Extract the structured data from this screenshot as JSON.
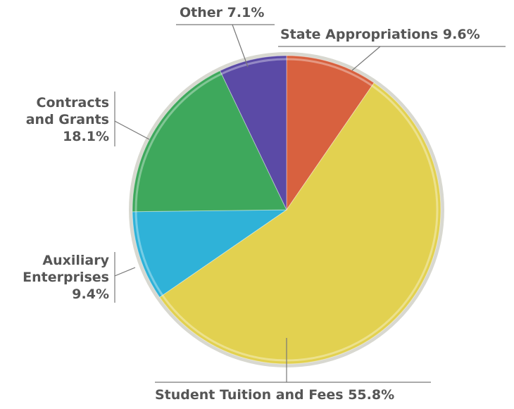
{
  "chart_data": {
    "type": "pie",
    "categories": [
      "State Appropriations",
      "Student Tuition and Fees",
      "Auxiliary Enterprises",
      "Contracts and Grants",
      "Other"
    ],
    "values": [
      9.6,
      55.8,
      9.4,
      18.1,
      7.1
    ],
    "value_labels": [
      "9.6%",
      "55.8%",
      "9.4%",
      "18.1%",
      "7.1%"
    ],
    "colors": [
      "#d8613f",
      "#e2d150",
      "#2fb2d8",
      "#3ea85c",
      "#5b4aa6"
    ]
  }
}
